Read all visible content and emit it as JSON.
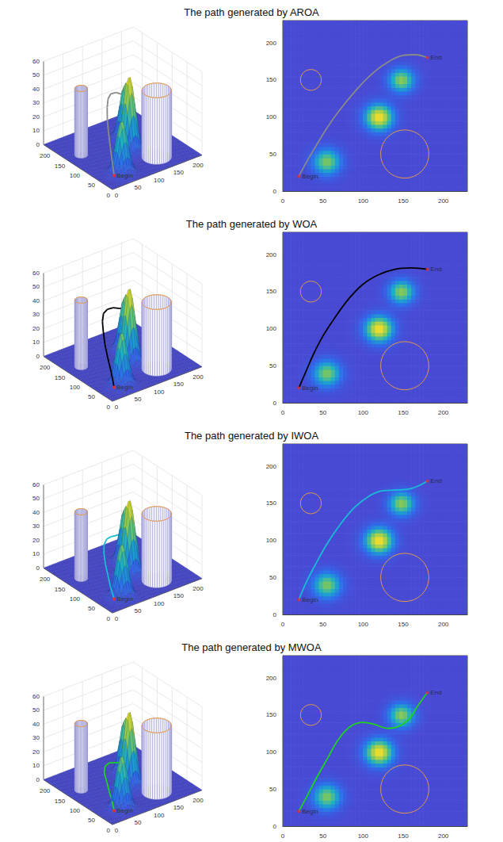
{
  "chart_data": [
    {
      "type": "path_planning",
      "title": "The path generated by AROA",
      "xlim": [
        0,
        230
      ],
      "ylim": [
        0,
        230
      ],
      "zlim": [
        0,
        60
      ],
      "xticks": [
        0,
        50,
        100,
        150,
        200
      ],
      "yticks": [
        0,
        50,
        100,
        150,
        200
      ],
      "zticks": [
        0,
        10,
        20,
        30,
        40,
        50,
        60
      ],
      "peaks": [
        {
          "x": 55,
          "y": 40,
          "height": 38,
          "spread": 12
        },
        {
          "x": 120,
          "y": 100,
          "height": 55,
          "spread": 12
        },
        {
          "x": 148,
          "y": 150,
          "height": 40,
          "spread": 11
        }
      ],
      "threats": [
        {
          "x": 35,
          "y": 150,
          "radius": 13,
          "height": 48
        },
        {
          "x": 152,
          "y": 50,
          "radius": 30,
          "height": 48
        }
      ],
      "begin": {
        "x": 20,
        "y": 20,
        "z": 5,
        "label": "Begin"
      },
      "end": {
        "x": 180,
        "y": 180,
        "label": "End"
      },
      "path": {
        "color": "#8a8a8a",
        "x": [
          20,
          30,
          42,
          55,
          70,
          88,
          108,
          128,
          150,
          165,
          180
        ],
        "y": [
          20,
          40,
          62,
          85,
          108,
          132,
          155,
          172,
          183,
          184,
          180
        ],
        "z": [
          5,
          12,
          18,
          24,
          28,
          31,
          32,
          31,
          28,
          25,
          22
        ]
      }
    },
    {
      "type": "path_planning",
      "title": "The path generated by WOA",
      "xlim": [
        0,
        230
      ],
      "ylim": [
        0,
        230
      ],
      "zlim": [
        0,
        60
      ],
      "xticks": [
        0,
        50,
        100,
        150,
        200
      ],
      "yticks": [
        0,
        50,
        100,
        150,
        200
      ],
      "zticks": [
        0,
        10,
        20,
        30,
        40,
        50,
        60
      ],
      "peaks": [
        {
          "x": 55,
          "y": 40,
          "height": 38,
          "spread": 12
        },
        {
          "x": 120,
          "y": 100,
          "height": 55,
          "spread": 12
        },
        {
          "x": 148,
          "y": 150,
          "height": 40,
          "spread": 11
        }
      ],
      "threats": [
        {
          "x": 35,
          "y": 150,
          "radius": 13,
          "height": 48
        },
        {
          "x": 152,
          "y": 50,
          "radius": 30,
          "height": 48
        }
      ],
      "begin": {
        "x": 20,
        "y": 20,
        "z": 5,
        "label": "Begin"
      },
      "end": {
        "x": 180,
        "y": 180,
        "label": "End"
      },
      "path": {
        "color": "#000000",
        "x": [
          20,
          28,
          38,
          50,
          65,
          82,
          100,
          120,
          140,
          160,
          180
        ],
        "y": [
          20,
          40,
          65,
          90,
          115,
          140,
          160,
          173,
          180,
          182,
          180
        ],
        "z": [
          5,
          12,
          18,
          23,
          27,
          29,
          30,
          29,
          27,
          24,
          22
        ]
      }
    },
    {
      "type": "path_planning",
      "title": "The path generated by IWOA",
      "xlim": [
        0,
        230
      ],
      "ylim": [
        0,
        230
      ],
      "zlim": [
        0,
        60
      ],
      "xticks": [
        0,
        50,
        100,
        150,
        200
      ],
      "yticks": [
        0,
        50,
        100,
        150,
        200
      ],
      "zticks": [
        0,
        10,
        20,
        30,
        40,
        50,
        60
      ],
      "peaks": [
        {
          "x": 55,
          "y": 40,
          "height": 38,
          "spread": 12
        },
        {
          "x": 120,
          "y": 100,
          "height": 55,
          "spread": 12
        },
        {
          "x": 148,
          "y": 150,
          "height": 40,
          "spread": 11
        }
      ],
      "threats": [
        {
          "x": 35,
          "y": 150,
          "radius": 13,
          "height": 48
        },
        {
          "x": 152,
          "y": 50,
          "radius": 30,
          "height": 48
        }
      ],
      "begin": {
        "x": 20,
        "y": 20,
        "z": 5,
        "label": "Begin"
      },
      "end": {
        "x": 180,
        "y": 180,
        "label": "End"
      },
      "path": {
        "color": "#19bcd6",
        "x": [
          20,
          30,
          42,
          55,
          72,
          90,
          108,
          125,
          145,
          160,
          172,
          180
        ],
        "y": [
          20,
          45,
          70,
          95,
          122,
          145,
          160,
          167,
          168,
          170,
          175,
          180
        ],
        "z": [
          5,
          9,
          13,
          16,
          18,
          19,
          19,
          18,
          17,
          16,
          15,
          15
        ]
      }
    },
    {
      "type": "path_planning",
      "title": "The path generated by MWOA",
      "xlim": [
        0,
        230
      ],
      "ylim": [
        0,
        230
      ],
      "zlim": [
        0,
        60
      ],
      "xticks": [
        0,
        50,
        100,
        150,
        200
      ],
      "yticks": [
        0,
        50,
        100,
        150,
        200
      ],
      "zticks": [
        0,
        10,
        20,
        30,
        40,
        50,
        60
      ],
      "peaks": [
        {
          "x": 55,
          "y": 40,
          "height": 38,
          "spread": 12
        },
        {
          "x": 120,
          "y": 100,
          "height": 55,
          "spread": 12
        },
        {
          "x": 148,
          "y": 150,
          "height": 40,
          "spread": 11
        }
      ],
      "threats": [
        {
          "x": 35,
          "y": 150,
          "radius": 13,
          "height": 48
        },
        {
          "x": 152,
          "y": 50,
          "radius": 30,
          "height": 48
        }
      ],
      "begin": {
        "x": 20,
        "y": 20,
        "z": 5,
        "label": "Begin"
      },
      "end": {
        "x": 180,
        "y": 180,
        "label": "End"
      },
      "path": {
        "color": "#1ed41e",
        "x": [
          20,
          30,
          42,
          55,
          70,
          85,
          100,
          115,
          130,
          145,
          158,
          168,
          180
        ],
        "y": [
          20,
          40,
          65,
          90,
          118,
          135,
          140,
          137,
          132,
          135,
          145,
          162,
          180
        ],
        "z": [
          5,
          8,
          10,
          12,
          13,
          14,
          14,
          13,
          12,
          12,
          12,
          13,
          14
        ]
      }
    }
  ]
}
